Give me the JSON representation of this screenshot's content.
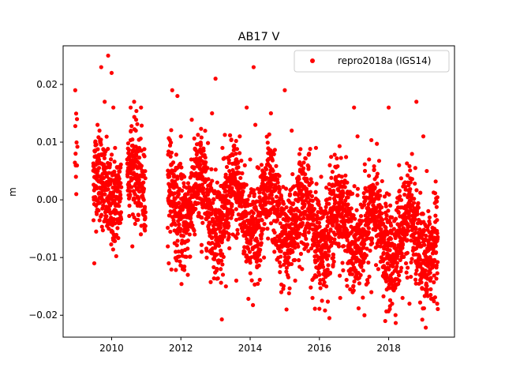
{
  "chart_data": {
    "type": "scatter",
    "title": "AB17 V",
    "xlabel": "",
    "ylabel": "m",
    "xlim": [
      2008.6,
      2019.9
    ],
    "ylim": [
      -0.0238,
      0.0267
    ],
    "x_ticks": [
      2010,
      2012,
      2014,
      2016,
      2018
    ],
    "x_tick_labels": [
      "2010",
      "2012",
      "2014",
      "2016",
      "2018"
    ],
    "y_ticks": [
      -0.02,
      -0.01,
      0.0,
      0.01,
      0.02
    ],
    "y_tick_labels": [
      "−0.02",
      "−0.01",
      "0.00",
      "0.01",
      "0.02"
    ],
    "legend": {
      "position": "upper right",
      "entries": [
        {
          "label": "repro2018a (IGS14)",
          "color": "#ff0000",
          "marker": "dot"
        }
      ]
    },
    "marker_color": "#ff0000",
    "series": [
      {
        "name": "repro2018a (IGS14)",
        "color": "#ff0000",
        "x": [
          2008.95,
          2008.96,
          2008.97,
          2008.98,
          2009.0,
          2009.5,
          2009.52,
          2009.55,
          2009.6,
          2009.65,
          2009.7,
          2009.75,
          2009.8,
          2009.85,
          2009.9,
          2009.95,
          2010.0,
          2010.02,
          2010.05,
          2010.1,
          2010.15,
          2010.2,
          2010.25,
          2010.5,
          2010.55,
          2010.6,
          2010.65,
          2010.7,
          2010.75,
          2010.8,
          2010.85,
          2010.9,
          2010.95,
          2011.65,
          2011.7,
          2011.75,
          2011.8,
          2011.85,
          2011.9,
          2011.95,
          2012.0,
          2012.05,
          2012.1,
          2012.15,
          2012.2,
          2012.25,
          2012.3,
          2012.4,
          2012.5,
          2012.6,
          2012.7,
          2012.8,
          2012.9,
          2013.0,
          2013.05,
          2013.1,
          2013.15,
          2013.2,
          2013.3,
          2013.4,
          2013.5,
          2013.6,
          2013.7,
          2013.8,
          2013.9,
          2014.0,
          2014.05,
          2014.1,
          2014.15,
          2014.2,
          2014.3,
          2014.4,
          2014.5,
          2014.6,
          2014.7,
          2014.8,
          2014.9,
          2015.0,
          2015.05,
          2015.1,
          2015.15,
          2015.2,
          2015.3,
          2015.4,
          2015.5,
          2015.6,
          2015.7,
          2015.8,
          2015.9,
          2016.0,
          2016.05,
          2016.1,
          2016.2,
          2016.3,
          2016.4,
          2016.5,
          2016.6,
          2016.7,
          2016.8,
          2016.9,
          2017.0,
          2017.05,
          2017.1,
          2017.2,
          2017.3,
          2017.4,
          2017.5,
          2017.6,
          2017.7,
          2017.8,
          2017.9,
          2018.0,
          2018.05,
          2018.1,
          2018.2,
          2018.3,
          2018.4,
          2018.5,
          2018.6,
          2018.7,
          2018.8,
          2018.9,
          2019.0,
          2019.05,
          2019.1,
          2019.2,
          2019.3,
          2019.4
        ],
        "y": [
          0.019,
          0.008,
          0.004,
          0.001,
          0.014,
          -0.011,
          0.002,
          -0.001,
          0.005,
          0.012,
          0.023,
          0.003,
          0.017,
          -0.002,
          0.025,
          0.006,
          0.022,
          0.001,
          0.016,
          0.009,
          -0.001,
          0.004,
          -0.004,
          0.003,
          0.016,
          0.006,
          0.017,
          0.012,
          -0.001,
          0.009,
          0.016,
          0.005,
          -0.005,
          -0.011,
          -0.002,
          0.019,
          0.004,
          -0.009,
          0.018,
          0.006,
          0.011,
          -0.012,
          0.004,
          -0.004,
          -0.013,
          0.002,
          0.007,
          -0.006,
          0.001,
          -0.009,
          0.006,
          -0.003,
          0.015,
          0.021,
          0.003,
          -0.007,
          -0.012,
          0.009,
          -0.015,
          0.005,
          -0.006,
          -0.014,
          0.011,
          -0.003,
          0.016,
          0.007,
          -0.002,
          0.023,
          0.013,
          -0.008,
          0.004,
          -0.01,
          -0.005,
          0.015,
          -0.009,
          0.003,
          -0.016,
          0.019,
          -0.019,
          -0.006,
          0.001,
          0.012,
          -0.014,
          0.004,
          -0.012,
          -0.005,
          0.008,
          -0.017,
          0.009,
          -0.013,
          0.004,
          -0.003,
          -0.015,
          0.006,
          -0.01,
          -0.003,
          -0.017,
          -0.008,
          0.003,
          -0.012,
          0.016,
          -0.007,
          0.011,
          -0.009,
          -0.02,
          -0.004,
          -0.016,
          0.002,
          -0.012,
          -0.007,
          -0.021,
          0.016,
          -0.003,
          -0.018,
          -0.01,
          0.006,
          -0.017,
          -0.011,
          -0.018,
          -0.006,
          0.017,
          -0.013,
          0.011,
          -0.007,
          0.005,
          -0.014,
          -0.009,
          -0.018
        ],
        "y_spread_note": ""
      }
    ]
  }
}
